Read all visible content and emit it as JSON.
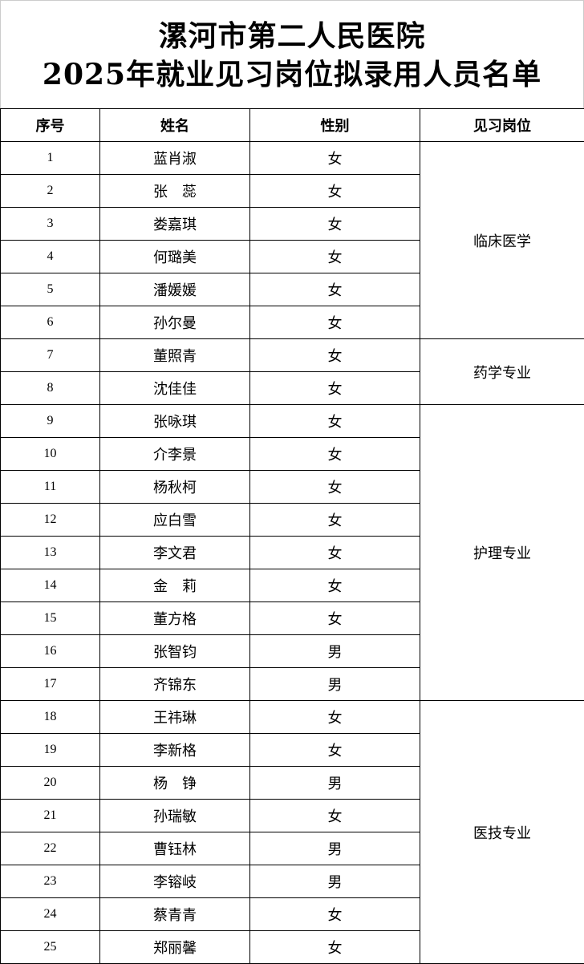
{
  "title": {
    "line1": "漯河市第二人民医院",
    "line2": "2025年就业见习岗位拟录用人员名单"
  },
  "table": {
    "headers": [
      "序号",
      "姓名",
      "性别",
      "见习岗位"
    ],
    "groups": [
      {
        "position": "临床医学",
        "rows": [
          {
            "no": "1",
            "name": "蓝肖淑",
            "gender": "女"
          },
          {
            "no": "2",
            "name": "张　蕊",
            "gender": "女"
          },
          {
            "no": "3",
            "name": "娄嘉琪",
            "gender": "女"
          },
          {
            "no": "4",
            "name": "何璐美",
            "gender": "女"
          },
          {
            "no": "5",
            "name": "潘媛媛",
            "gender": "女"
          },
          {
            "no": "6",
            "name": "孙尔曼",
            "gender": "女"
          }
        ]
      },
      {
        "position": "药学专业",
        "rows": [
          {
            "no": "7",
            "name": "董照青",
            "gender": "女"
          },
          {
            "no": "8",
            "name": "沈佳佳",
            "gender": "女"
          }
        ]
      },
      {
        "position": "护理专业",
        "rows": [
          {
            "no": "9",
            "name": "张咏琪",
            "gender": "女"
          },
          {
            "no": "10",
            "name": "介李景",
            "gender": "女"
          },
          {
            "no": "11",
            "name": "杨秋柯",
            "gender": "女"
          },
          {
            "no": "12",
            "name": "应白雪",
            "gender": "女"
          },
          {
            "no": "13",
            "name": "李文君",
            "gender": "女"
          },
          {
            "no": "14",
            "name": "金　莉",
            "gender": "女"
          },
          {
            "no": "15",
            "name": "董方格",
            "gender": "女"
          },
          {
            "no": "16",
            "name": "张智钧",
            "gender": "男"
          },
          {
            "no": "17",
            "name": "齐锦东",
            "gender": "男"
          }
        ]
      },
      {
        "position": "医技专业",
        "rows": [
          {
            "no": "18",
            "name": "王祎琳",
            "gender": "女"
          },
          {
            "no": "19",
            "name": "李新格",
            "gender": "女"
          },
          {
            "no": "20",
            "name": "杨　铮",
            "gender": "男"
          },
          {
            "no": "21",
            "name": "孙瑞敏",
            "gender": "女"
          },
          {
            "no": "22",
            "name": "曹钰林",
            "gender": "男"
          },
          {
            "no": "23",
            "name": "李镕岐",
            "gender": "男"
          },
          {
            "no": "24",
            "name": "蔡青青",
            "gender": "女"
          },
          {
            "no": "25",
            "name": "郑丽馨",
            "gender": "女"
          }
        ]
      }
    ]
  }
}
